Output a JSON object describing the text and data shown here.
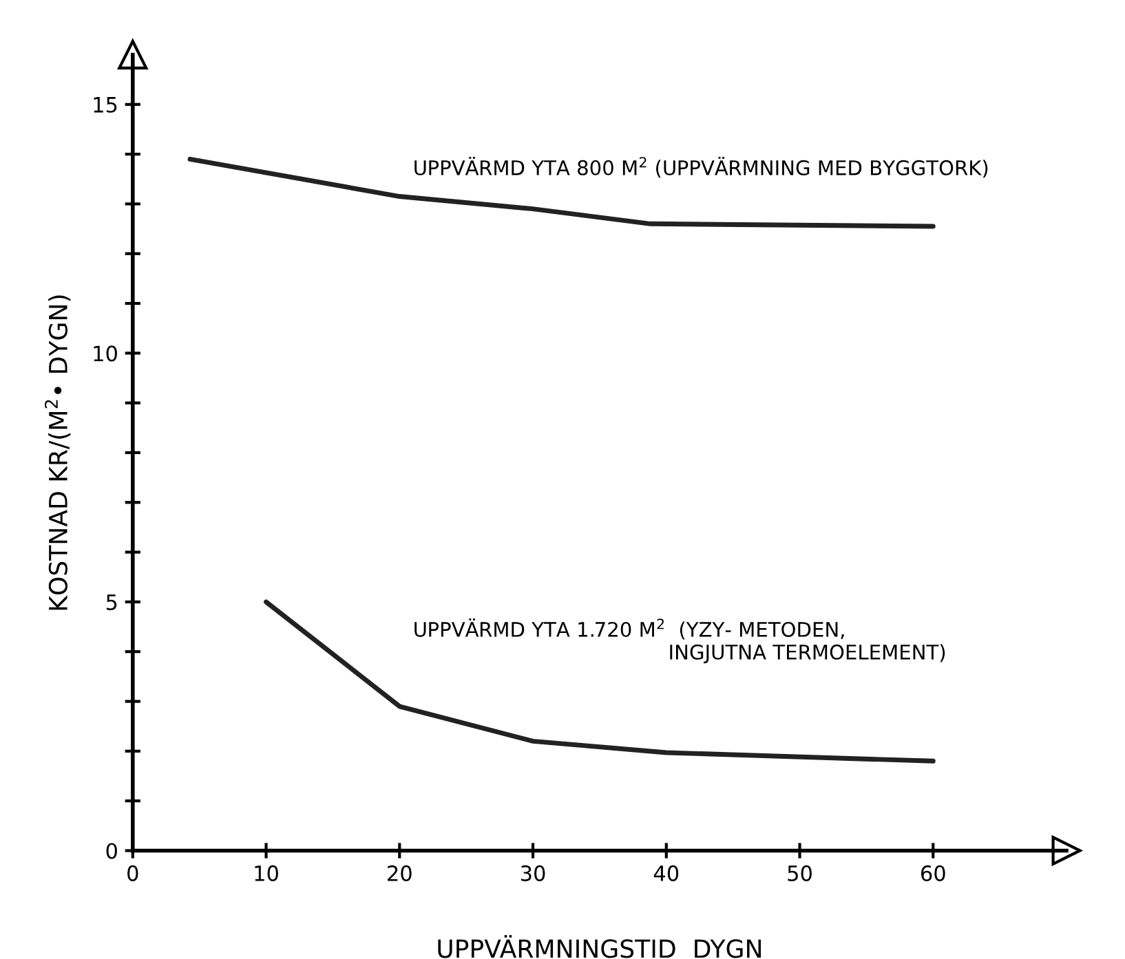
{
  "chart_data": {
    "type": "line",
    "xlabel": "UPPVÄRMNINGSTID  DYGN",
    "ylabel": "KOSTNAD KR/(M$^{2}$• DYGN)",
    "xlim": [
      0,
      70
    ],
    "ylim": [
      0,
      16
    ],
    "xticks": [
      0,
      10,
      20,
      30,
      40,
      50,
      60
    ],
    "yticks": [
      0,
      {
        "value": 1,
        "label": null
      },
      {
        "value": 2,
        "label": null
      },
      {
        "value": 3,
        "label": null
      },
      {
        "value": 4,
        "label": null
      },
      5,
      {
        "value": 6,
        "label": null
      },
      {
        "value": 7,
        "label": null
      },
      {
        "value": 8,
        "label": null
      },
      {
        "value": 9,
        "label": null
      },
      10,
      {
        "value": 11,
        "label": null
      },
      {
        "value": 12,
        "label": null
      },
      {
        "value": 13,
        "label": null
      },
      {
        "value": 14,
        "label": null
      },
      15
    ],
    "grid": false,
    "legend": false,
    "marker": "none",
    "line_style": "solid",
    "series": [
      {
        "name": "UPPVÄRMD YTA 800 M$^{2}$ (UPPVÄRMNING MED BYGGTORK)",
        "color": "#222222",
        "x": [
          4.3,
          20,
          30,
          38.8,
          60
        ],
        "values": [
          13.9,
          13.15,
          12.9,
          12.6,
          12.55
        ]
      },
      {
        "name": "UPPVÄRMD YTA 1.720 M$^{2}$  (YZY- METODEN,\n                                        INGJUTNA TERMOELEMENT)",
        "color": "#222222",
        "x": [
          10,
          20,
          30,
          40,
          60
        ],
        "values": [
          5.0,
          2.9,
          2.2,
          1.97,
          1.8
        ]
      }
    ]
  }
}
